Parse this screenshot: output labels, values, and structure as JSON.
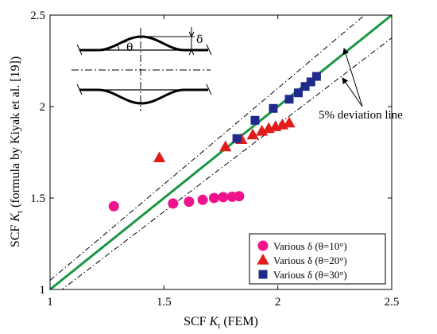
{
  "chart_data": {
    "type": "scatter",
    "xlim": [
      1,
      2.5
    ],
    "ylim": [
      1,
      2.5
    ],
    "x_ticks": [
      "1",
      "1.5",
      "2",
      "2.5"
    ],
    "y_ticks": [
      "1",
      "1.5",
      "2",
      "2.5"
    ],
    "grid": false,
    "legend_position": "bottom-right",
    "xlabel": {
      "prefix": "SCF ",
      "symbol": "K",
      "subscript": "t",
      "suffix": " (FEM)"
    },
    "ylabel": {
      "prefix": "SCF ",
      "symbol": "K",
      "subscript": "t",
      "suffix": " (formula by Kiyak et al. [19])"
    },
    "reference_lines": [
      {
        "kind": "equality",
        "slope": 1.0,
        "color": "#1a9641",
        "style": "solid"
      },
      {
        "kind": "deviation-upper",
        "slope": 1.05,
        "color": "#000000",
        "style": "dashdot"
      },
      {
        "kind": "deviation-lower",
        "slope": 0.95,
        "color": "#000000",
        "style": "dashdot"
      }
    ],
    "series": [
      {
        "name": "Various δ (θ=10°)",
        "marker": "circle",
        "color": "#f0148c",
        "points": [
          [
            1.28,
            1.455
          ],
          [
            1.54,
            1.47
          ],
          [
            1.61,
            1.48
          ],
          [
            1.67,
            1.49
          ],
          [
            1.72,
            1.5
          ],
          [
            1.76,
            1.505
          ],
          [
            1.8,
            1.507
          ],
          [
            1.83,
            1.51
          ]
        ]
      },
      {
        "name": "Various δ (θ=20°)",
        "marker": "triangle",
        "color": "#e31b1b",
        "points": [
          [
            1.48,
            1.72
          ],
          [
            1.77,
            1.78
          ],
          [
            1.84,
            1.82
          ],
          [
            1.89,
            1.845
          ],
          [
            1.93,
            1.865
          ],
          [
            1.96,
            1.88
          ],
          [
            1.99,
            1.89
          ],
          [
            2.02,
            1.9
          ],
          [
            2.05,
            1.91
          ]
        ]
      },
      {
        "name": "Various δ (θ=30°)",
        "marker": "square",
        "color": "#1f2a8c",
        "points": [
          [
            1.82,
            1.825
          ],
          [
            1.9,
            1.925
          ],
          [
            1.98,
            1.99
          ],
          [
            2.05,
            2.04
          ],
          [
            2.09,
            2.075
          ],
          [
            2.12,
            2.11
          ],
          [
            2.145,
            2.135
          ],
          [
            2.17,
            2.165
          ]
        ]
      }
    ],
    "annotations": [
      {
        "text": "5% deviation line"
      }
    ]
  }
}
